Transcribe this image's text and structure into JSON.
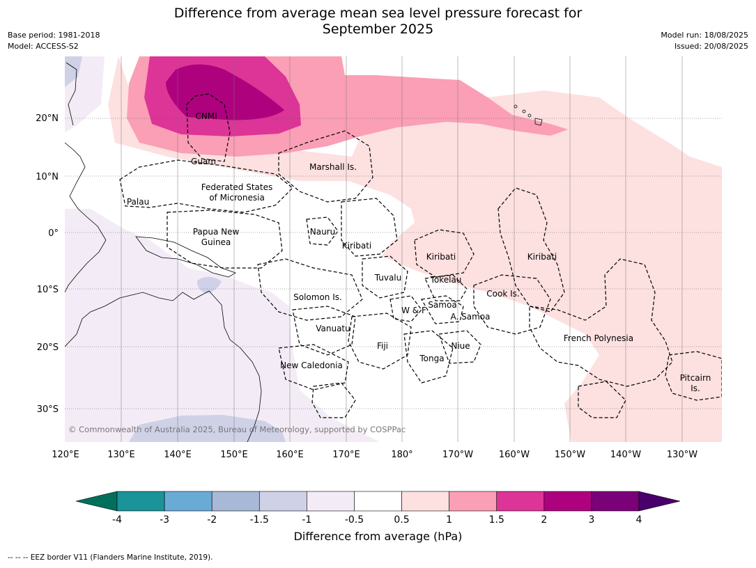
{
  "header": {
    "title_line1": "Difference from average mean sea level pressure forecast for",
    "title_line2": "September 2025",
    "base_period": "Base period: 1981-2018",
    "model": "Model: ACCESS-S2",
    "model_run": "Model run: 18/08/2025",
    "issued": "Issued: 20/08/2025"
  },
  "map": {
    "lon_labels": [
      "120°E",
      "130°E",
      "140°E",
      "150°E",
      "160°E",
      "170°E",
      "180°",
      "170°W",
      "160°W",
      "150°W",
      "140°W",
      "130°W"
    ],
    "lat_labels": [
      "20°N",
      "10°N",
      "0°",
      "10°S",
      "20°S",
      "30°S"
    ],
    "copyright": "© Commonwealth of Australia 2025, Bureau of Meteorology, supported by COSPPac",
    "places": {
      "cnmi": "CNMI",
      "guam": "Guam",
      "marshall": "Marshall Is.",
      "fsm1": "Federated States",
      "fsm2": "of Micronesia",
      "palau": "Palau",
      "png1": "Papua New",
      "png2": "Guinea",
      "nauru": "Nauru",
      "kiribati_w": "Kiribati",
      "kiribati_c": "Kiribati",
      "kiribati_e": "Kiribati",
      "tuvalu": "Tuvalu",
      "tokelau": "Tokelau",
      "cook": "Cook Is.",
      "solomon": "Solomon Is.",
      "wf": "W & F",
      "samoa": "Samoa",
      "asamoa": "A. Samoa",
      "vanuatu": "Vanuatu",
      "fiji": "Fiji",
      "niue": "Niue",
      "tonga": "Tonga",
      "newcal": "New Caledonia",
      "frpoly": "French Polynesia",
      "pitcairn1": "Pitcairn",
      "pitcairn2": "Is."
    }
  },
  "colorbar": {
    "ticks": [
      "-4",
      "-3",
      "-2",
      "-1.5",
      "-1",
      "-0.5",
      "0.5",
      "1",
      "1.5",
      "2",
      "3",
      "4"
    ],
    "colors": [
      "#1a9399",
      "#6aabd6",
      "#a8b9d8",
      "#cfd1e7",
      "#f3ecf6",
      "#ffffff",
      "#fde0e0",
      "#fa9fb5",
      "#dd3497",
      "#ae017e",
      "#7a0177"
    ],
    "low_extend_color": "#00705c",
    "high_extend_color": "#49006a",
    "label": "Difference from average (hPa)"
  },
  "footer": "--  --  -- EEZ border V11 (Flanders Marine Institute, 2019)."
}
